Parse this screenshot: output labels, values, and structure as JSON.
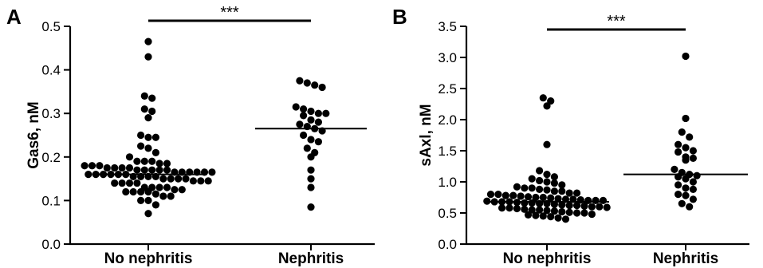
{
  "chart_data": [
    {
      "type": "scatter",
      "panel": "A",
      "ylabel": "Gas6, nM",
      "ylim": [
        0,
        0.5
      ],
      "yticks": [
        "0.0",
        "0.1",
        "0.2",
        "0.3",
        "0.4",
        "0.5"
      ],
      "categories": [
        "No nephritis",
        "Nephritis"
      ],
      "significance": "***",
      "medians": [
        0.16,
        0.265
      ],
      "groups": [
        {
          "category": "No nephritis",
          "values": [
            0.465,
            0.43,
            0.34,
            0.335,
            0.31,
            0.305,
            0.29,
            0.25,
            0.245,
            0.245,
            0.225,
            0.22,
            0.21,
            0.2,
            0.19,
            0.19,
            0.19,
            0.185,
            0.185,
            0.18,
            0.18,
            0.18,
            0.175,
            0.175,
            0.175,
            0.175,
            0.17,
            0.17,
            0.17,
            0.17,
            0.17,
            0.165,
            0.165,
            0.165,
            0.165,
            0.165,
            0.165,
            0.16,
            0.16,
            0.16,
            0.16,
            0.16,
            0.16,
            0.155,
            0.155,
            0.155,
            0.155,
            0.15,
            0.15,
            0.15,
            0.15,
            0.145,
            0.145,
            0.145,
            0.14,
            0.14,
            0.14,
            0.14,
            0.13,
            0.13,
            0.13,
            0.13,
            0.125,
            0.125,
            0.12,
            0.12,
            0.12,
            0.12,
            0.115,
            0.11,
            0.11,
            0.1,
            0.1,
            0.09,
            0.07
          ]
        },
        {
          "category": "Nephritis",
          "values": [
            0.375,
            0.37,
            0.365,
            0.36,
            0.315,
            0.31,
            0.305,
            0.3,
            0.3,
            0.295,
            0.285,
            0.28,
            0.275,
            0.27,
            0.265,
            0.26,
            0.25,
            0.24,
            0.235,
            0.22,
            0.21,
            0.2,
            0.17,
            0.15,
            0.13,
            0.085
          ]
        }
      ]
    },
    {
      "type": "scatter",
      "panel": "B",
      "ylabel": "sAxl, nM",
      "ylim": [
        0,
        3.5
      ],
      "yticks": [
        "0.0",
        "0.5",
        "1.0",
        "1.5",
        "2.0",
        "2.5",
        "3.0",
        "3.5"
      ],
      "categories": [
        "No nephritis",
        "Nephritis"
      ],
      "significance": "***",
      "medians": [
        0.68,
        1.12
      ],
      "groups": [
        {
          "category": "No nephritis",
          "values": [
            2.35,
            2.3,
            2.22,
            1.6,
            1.18,
            1.12,
            1.08,
            1.05,
            1.02,
            1.0,
            0.98,
            0.95,
            0.92,
            0.9,
            0.9,
            0.88,
            0.87,
            0.85,
            0.85,
            0.82,
            0.82,
            0.8,
            0.8,
            0.78,
            0.78,
            0.77,
            0.76,
            0.75,
            0.75,
            0.74,
            0.73,
            0.72,
            0.72,
            0.71,
            0.7,
            0.7,
            0.7,
            0.69,
            0.68,
            0.68,
            0.68,
            0.67,
            0.66,
            0.66,
            0.65,
            0.65,
            0.64,
            0.63,
            0.62,
            0.62,
            0.61,
            0.6,
            0.6,
            0.59,
            0.58,
            0.58,
            0.57,
            0.56,
            0.55,
            0.55,
            0.54,
            0.53,
            0.52,
            0.51,
            0.5,
            0.5,
            0.48,
            0.47,
            0.46,
            0.45,
            0.44,
            0.42,
            0.4
          ]
        },
        {
          "category": "Nephritis",
          "values": [
            3.02,
            2.02,
            1.8,
            1.72,
            1.6,
            1.55,
            1.5,
            1.48,
            1.4,
            1.38,
            1.35,
            1.2,
            1.15,
            1.12,
            1.1,
            1.08,
            1.05,
            1.0,
            0.95,
            0.9,
            0.88,
            0.8,
            0.78,
            0.72,
            0.65,
            0.6
          ]
        }
      ]
    }
  ]
}
